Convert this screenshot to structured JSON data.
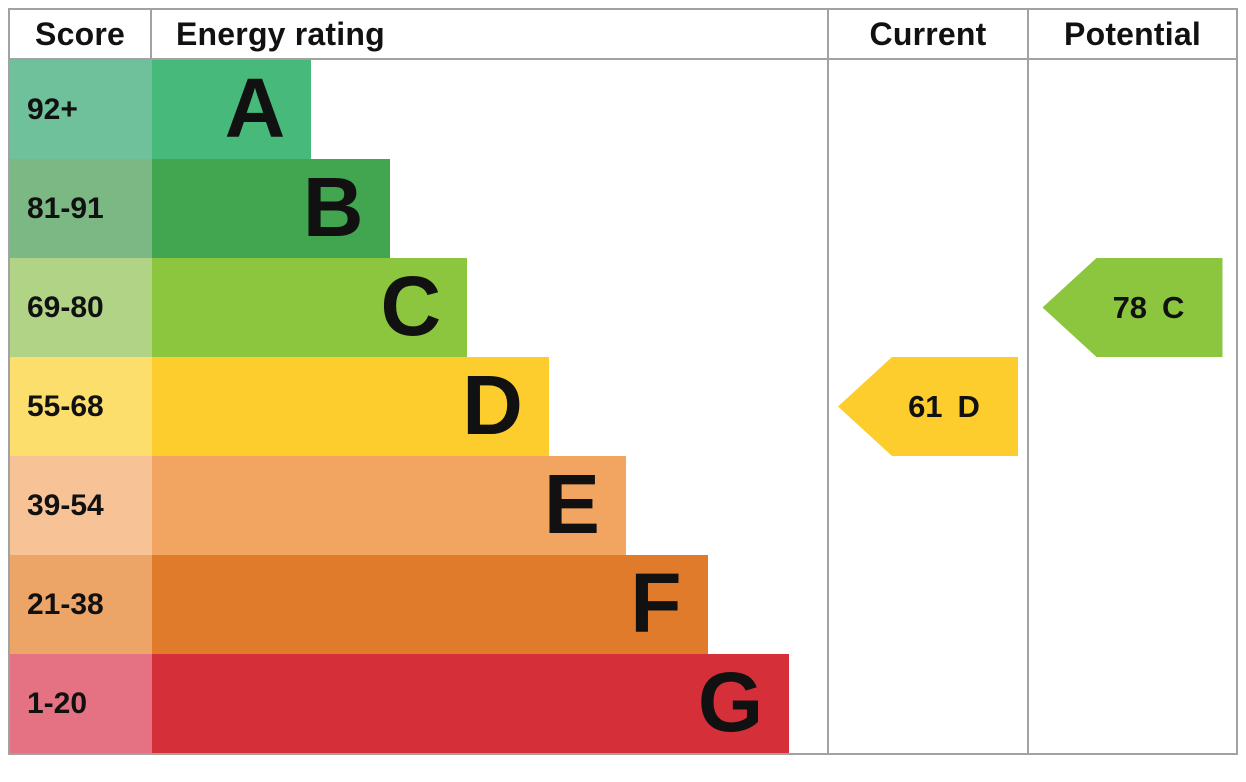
{
  "chart": {
    "headers": {
      "score": "Score",
      "rating": "Energy rating",
      "current": "Current",
      "potential": "Potential"
    },
    "bands": [
      {
        "letter": "A",
        "score_range": "92+",
        "bar_color": "#47ba7b",
        "score_color": "#6fc19b",
        "bar_width": "23.6%"
      },
      {
        "letter": "B",
        "score_range": "81-91",
        "bar_color": "#42a651",
        "score_color": "#7cb883",
        "bar_width": "35.2%"
      },
      {
        "letter": "C",
        "score_range": "69-80",
        "bar_color": "#8cc63f",
        "score_color": "#b1d386",
        "bar_width": "46.7%"
      },
      {
        "letter": "D",
        "score_range": "55-68",
        "bar_color": "#fccd2c",
        "score_color": "#fcde6c",
        "bar_width": "58.8%"
      },
      {
        "letter": "E",
        "score_range": "39-54",
        "bar_color": "#f2a561",
        "score_color": "#f8c297",
        "bar_width": "70.2%"
      },
      {
        "letter": "F",
        "score_range": "21-38",
        "bar_color": "#e07b2c",
        "score_color": "#eda467",
        "bar_width": "82.3%"
      },
      {
        "letter": "G",
        "score_range": "1-20",
        "bar_color": "#d5303a",
        "score_color": "#e57282",
        "bar_width": "94.4%"
      }
    ],
    "current": {
      "value": "61",
      "letter": "D",
      "color": "#fccd2c"
    },
    "potential": {
      "value": "78",
      "letter": "C",
      "color": "#8cc63f"
    },
    "border_color": "#a2a2a2"
  },
  "chart_data": {
    "type": "bar",
    "title": "Energy rating (EPC)",
    "columns": [
      "Score",
      "Energy rating",
      "Current",
      "Potential"
    ],
    "categories": [
      "A",
      "B",
      "C",
      "D",
      "E",
      "F",
      "G"
    ],
    "score_ranges": [
      "92+",
      "81-91",
      "69-80",
      "55-68",
      "39-54",
      "21-38",
      "1-20"
    ],
    "bar_widths_fraction_of_column": [
      0.236,
      0.352,
      0.467,
      0.588,
      0.702,
      0.823,
      0.944
    ],
    "band_colors": [
      "#47ba7b",
      "#42a651",
      "#8cc63f",
      "#fccd2c",
      "#f2a561",
      "#e07b2c",
      "#d5303a"
    ],
    "score_cell_colors": [
      "#6fc19b",
      "#7cb883",
      "#b1d386",
      "#fcde6c",
      "#f8c297",
      "#eda467",
      "#e57282"
    ],
    "current": {
      "score": 61,
      "band": "D",
      "row": "55-68"
    },
    "potential": {
      "score": 78,
      "band": "C",
      "row": "69-80"
    },
    "legend_position": "none",
    "grid": false
  }
}
